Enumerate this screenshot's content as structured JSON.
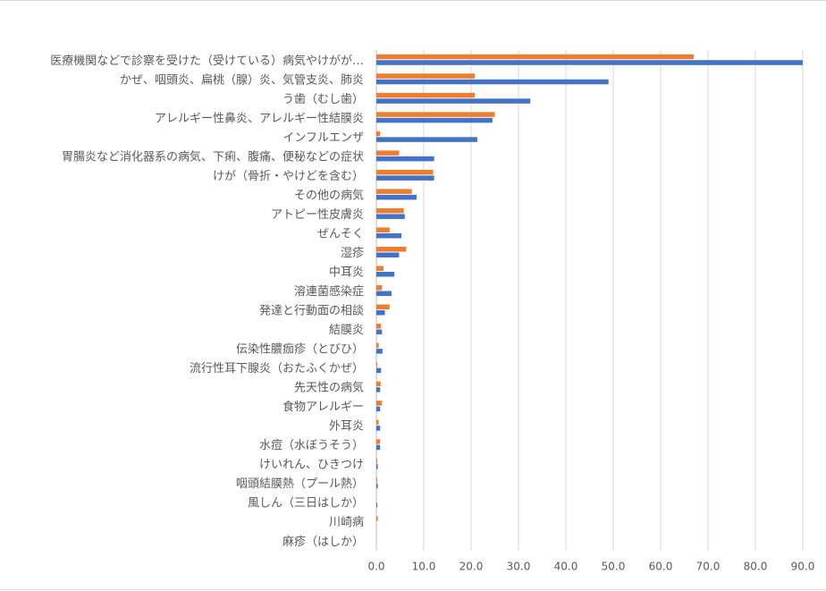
{
  "chart_data": {
    "type": "bar",
    "orientation": "horizontal",
    "categories": [
      "医療機関などで診察を受けた（受けている）病気やけがが…",
      "かぜ、咽頭炎、扁桃（腺）炎、気管支炎、肺炎",
      "う歯（むし歯）",
      "アレルギー性鼻炎、アレルギー性結膜炎",
      "インフルエンザ",
      "胃腸炎など消化器系の病気、下痢、腹痛、便秘などの症状",
      "けが（骨折・やけどを含む）",
      "その他の病気",
      "アトピー性皮膚炎",
      "ぜんそく",
      "湿疹",
      "中耳炎",
      "溶連菌感染症",
      "発達と行動面の相談",
      "結膜炎",
      "伝染性膿痂疹（とびひ）",
      "流行性耳下腺炎（おたふくかぜ）",
      "先天性の病気",
      "食物アレルギー",
      "外耳炎",
      "水痘（水ぼうそう）",
      "けいれん、ひきつけ",
      "咽頭結膜熱（プール熱）",
      "風しん（三日はしか）",
      "川崎病",
      "麻疹（はしか）"
    ],
    "series": [
      {
        "color": "#ed7d31",
        "values": [
          67.0,
          20.8,
          20.8,
          25.0,
          0.8,
          4.8,
          12.0,
          7.5,
          5.8,
          2.8,
          6.3,
          1.5,
          1.2,
          2.8,
          1.0,
          0.5,
          0.2,
          0.9,
          1.2,
          0.5,
          0.8,
          0.2,
          0.2,
          0.0,
          0.3,
          0.0
        ]
      },
      {
        "color": "#4472c4",
        "values": [
          90.0,
          49.0,
          32.5,
          24.5,
          21.3,
          12.2,
          12.2,
          8.5,
          6.0,
          5.3,
          4.8,
          3.8,
          3.2,
          1.8,
          1.2,
          1.3,
          1.0,
          0.8,
          0.8,
          0.8,
          0.8,
          0.3,
          0.3,
          0.2,
          0.0,
          0.0
        ]
      }
    ],
    "x_ticks": [
      "0.0",
      "10.0",
      "20.0",
      "30.0",
      "40.0",
      "50.0",
      "60.0",
      "70.0",
      "80.0",
      "90.0"
    ],
    "xlim": [
      0,
      90
    ],
    "grid": true,
    "legend": "none"
  }
}
